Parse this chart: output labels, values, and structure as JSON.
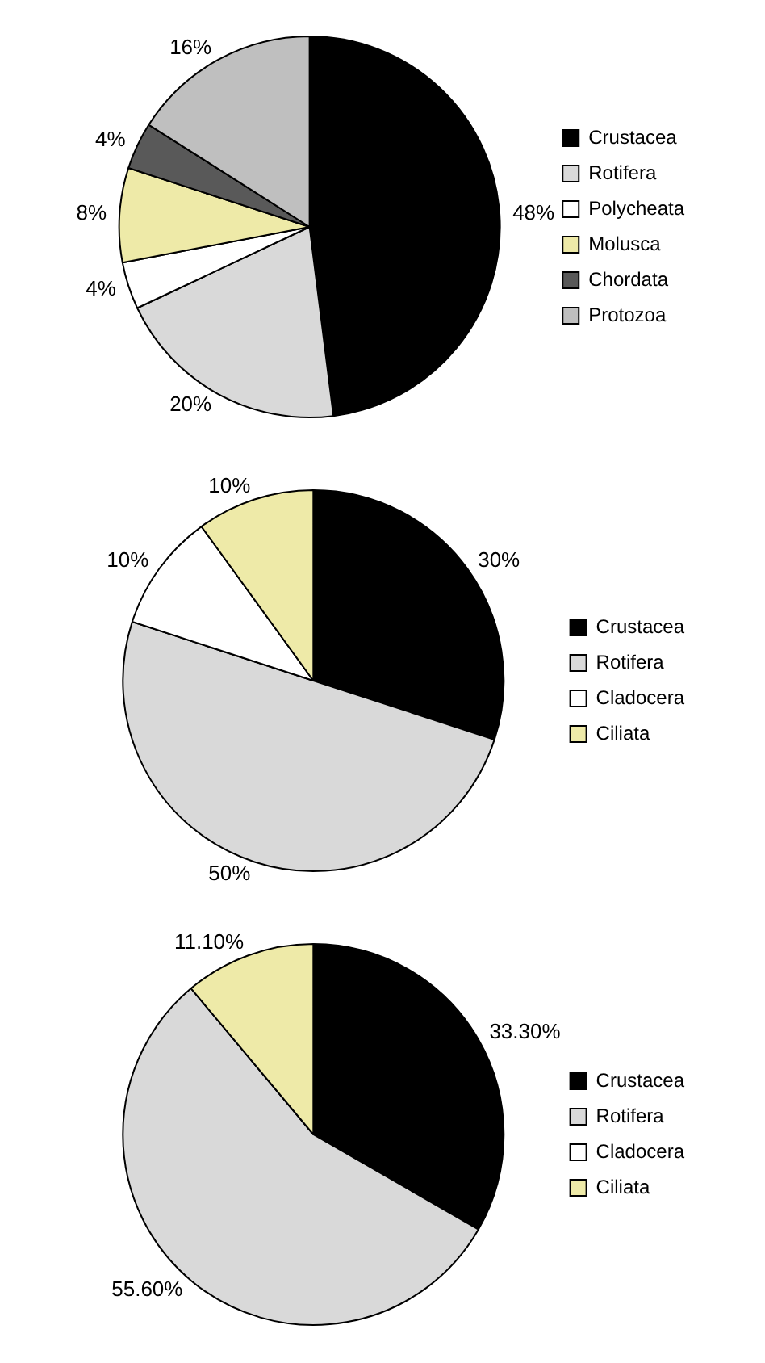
{
  "chart_data": [
    {
      "type": "pie",
      "categories": [
        "Crustacea",
        "Rotifera",
        "Polycheata",
        "Molusca",
        "Chordata",
        "Protozoa"
      ],
      "values": [
        48,
        20,
        4,
        8,
        4,
        16
      ],
      "value_labels": [
        "48%",
        "20%",
        "4%",
        "8%",
        "4%",
        "16%"
      ],
      "colors": [
        "#000000",
        "#d9d9d9",
        "#ffffff",
        "#eeeaa8",
        "#595959",
        "#bfbfbf"
      ],
      "legend": "right"
    },
    {
      "type": "pie",
      "categories": [
        "Crustacea",
        "Rotifera",
        "Cladocera",
        "Ciliata"
      ],
      "values": [
        30,
        50,
        10,
        10
      ],
      "value_labels": [
        "30%",
        "50%",
        "10%",
        "10%"
      ],
      "colors": [
        "#000000",
        "#d9d9d9",
        "#ffffff",
        "#eeeaa8"
      ],
      "legend": "right"
    },
    {
      "type": "pie",
      "categories": [
        "Crustacea",
        "Rotifera",
        "Cladocera",
        "Ciliata"
      ],
      "values": [
        33.3,
        55.6,
        0,
        11.1
      ],
      "value_labels": [
        "33.30%",
        "55.60%",
        null,
        "11.10%"
      ],
      "colors": [
        "#000000",
        "#d9d9d9",
        "#ffffff",
        "#eeeaa8"
      ],
      "legend": "right"
    }
  ]
}
